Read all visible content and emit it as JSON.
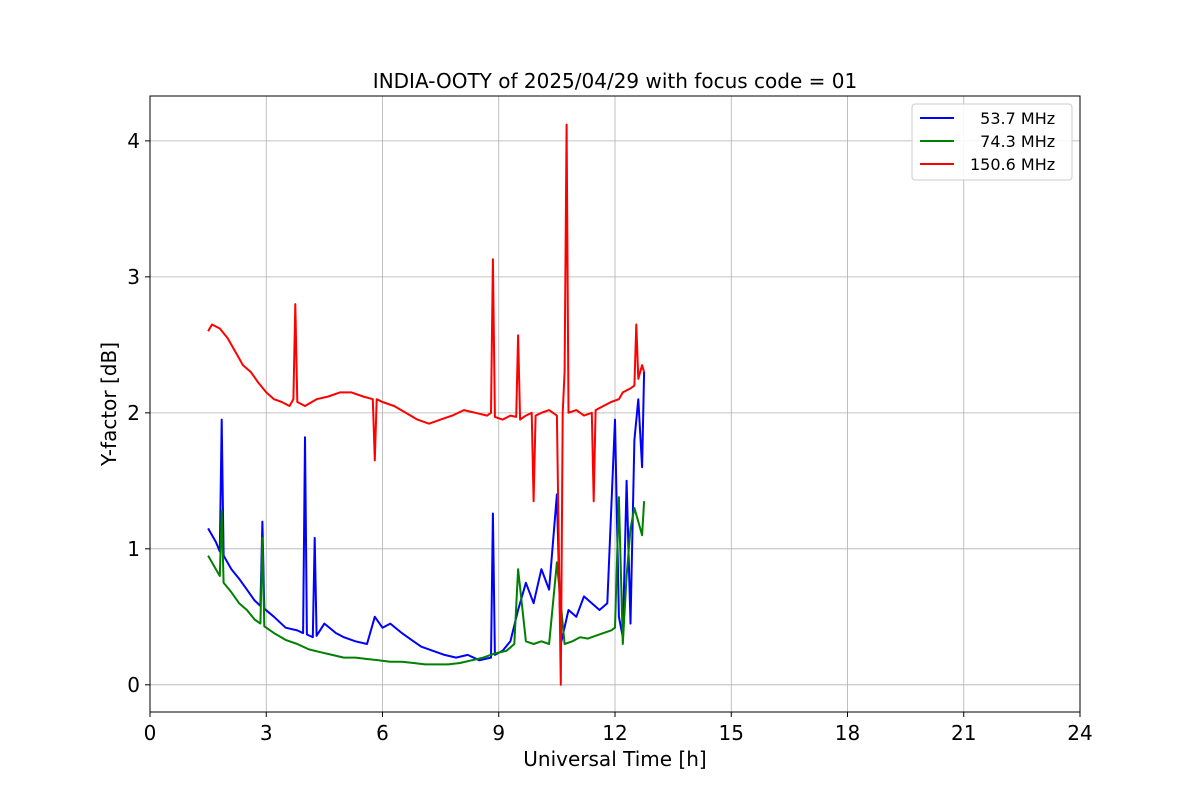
{
  "chart_data": {
    "type": "line",
    "title": "INDIA-OOTY of 2025/04/29 with focus code = 01",
    "xlabel": "Universal Time [h]",
    "ylabel": "Y-factor [dB]",
    "xlim": [
      0,
      24
    ],
    "ylim": [
      -0.2,
      4.33
    ],
    "xticks": [
      0,
      3,
      6,
      9,
      12,
      15,
      18,
      21,
      24
    ],
    "yticks": [
      0,
      1,
      2,
      3,
      4
    ],
    "grid": true,
    "legend_position": "top-right",
    "series": [
      {
        "name": "  53.7 MHz",
        "color": "#0000ff",
        "x": [
          1.5,
          1.7,
          1.8,
          1.85,
          1.9,
          2.1,
          2.3,
          2.5,
          2.7,
          2.85,
          2.9,
          2.95,
          3.2,
          3.5,
          3.8,
          3.95,
          4.0,
          4.05,
          4.2,
          4.25,
          4.3,
          4.5,
          4.8,
          5.0,
          5.3,
          5.6,
          5.8,
          6.0,
          6.2,
          6.5,
          6.8,
          7.0,
          7.3,
          7.6,
          7.9,
          8.2,
          8.5,
          8.8,
          8.85,
          8.9,
          9.1,
          9.3,
          9.5,
          9.7,
          9.9,
          10.1,
          10.3,
          10.5,
          10.6,
          10.8,
          11.0,
          11.2,
          11.4,
          11.6,
          11.8,
          12.0,
          12.1,
          12.2,
          12.3,
          12.4,
          12.5,
          12.6,
          12.7,
          12.75
        ],
        "y": [
          1.15,
          1.05,
          0.98,
          1.95,
          0.95,
          0.85,
          0.78,
          0.7,
          0.62,
          0.58,
          1.2,
          0.56,
          0.5,
          0.42,
          0.4,
          0.38,
          1.82,
          0.37,
          0.35,
          1.08,
          0.36,
          0.45,
          0.38,
          0.35,
          0.32,
          0.3,
          0.5,
          0.42,
          0.45,
          0.38,
          0.32,
          0.28,
          0.25,
          0.22,
          0.2,
          0.22,
          0.18,
          0.2,
          1.26,
          0.22,
          0.25,
          0.32,
          0.55,
          0.75,
          0.6,
          0.85,
          0.7,
          1.4,
          0.3,
          0.55,
          0.5,
          0.65,
          0.6,
          0.55,
          0.6,
          1.95,
          0.5,
          0.35,
          1.5,
          0.45,
          1.8,
          2.1,
          1.6,
          2.3
        ]
      },
      {
        "name": "  74.3 MHz",
        "color": "#008000",
        "x": [
          1.5,
          1.7,
          1.8,
          1.85,
          1.9,
          2.1,
          2.3,
          2.5,
          2.7,
          2.85,
          2.9,
          2.95,
          3.2,
          3.5,
          3.8,
          4.1,
          4.4,
          4.7,
          5.0,
          5.3,
          5.6,
          5.9,
          6.2,
          6.5,
          6.8,
          7.1,
          7.4,
          7.7,
          8.0,
          8.3,
          8.6,
          8.9,
          9.2,
          9.4,
          9.5,
          9.7,
          9.9,
          10.1,
          10.3,
          10.5,
          10.7,
          10.9,
          11.1,
          11.3,
          11.5,
          11.7,
          11.9,
          12.0,
          12.1,
          12.2,
          12.3,
          12.4,
          12.5,
          12.6,
          12.7,
          12.75
        ],
        "y": [
          0.95,
          0.85,
          0.8,
          1.28,
          0.75,
          0.68,
          0.6,
          0.55,
          0.48,
          0.45,
          1.08,
          0.43,
          0.38,
          0.33,
          0.3,
          0.26,
          0.24,
          0.22,
          0.2,
          0.2,
          0.19,
          0.18,
          0.17,
          0.17,
          0.16,
          0.15,
          0.15,
          0.15,
          0.16,
          0.18,
          0.2,
          0.23,
          0.25,
          0.3,
          0.85,
          0.32,
          0.3,
          0.32,
          0.3,
          0.9,
          0.3,
          0.32,
          0.35,
          0.34,
          0.36,
          0.38,
          0.4,
          0.42,
          1.38,
          0.3,
          0.8,
          1.15,
          1.3,
          1.2,
          1.1,
          1.35
        ]
      },
      {
        "name": "150.6 MHz",
        "color": "#ff0000",
        "x": [
          1.5,
          1.6,
          1.8,
          2.0,
          2.2,
          2.4,
          2.6,
          2.8,
          3.0,
          3.2,
          3.4,
          3.6,
          3.7,
          3.75,
          3.8,
          4.0,
          4.3,
          4.6,
          4.9,
          5.2,
          5.5,
          5.75,
          5.8,
          5.85,
          6.0,
          6.3,
          6.6,
          6.9,
          7.2,
          7.5,
          7.8,
          8.1,
          8.4,
          8.7,
          8.8,
          8.85,
          8.9,
          9.1,
          9.3,
          9.45,
          9.5,
          9.55,
          9.7,
          9.85,
          9.9,
          9.95,
          10.1,
          10.3,
          10.5,
          10.6,
          10.65,
          10.7,
          10.75,
          10.8,
          11.0,
          11.2,
          11.4,
          11.45,
          11.5,
          11.7,
          11.9,
          12.1,
          12.2,
          12.4,
          12.5,
          12.55,
          12.6,
          12.7,
          12.75
        ],
        "y": [
          2.6,
          2.65,
          2.62,
          2.55,
          2.45,
          2.35,
          2.3,
          2.22,
          2.15,
          2.1,
          2.08,
          2.05,
          2.1,
          2.8,
          2.08,
          2.05,
          2.1,
          2.12,
          2.15,
          2.15,
          2.12,
          2.1,
          1.65,
          2.1,
          2.08,
          2.05,
          2.0,
          1.95,
          1.92,
          1.95,
          1.98,
          2.02,
          2.0,
          1.98,
          2.0,
          3.13,
          1.97,
          1.95,
          1.98,
          1.97,
          2.57,
          1.95,
          1.98,
          2.0,
          1.35,
          1.98,
          2.0,
          2.02,
          1.98,
          0.0,
          2.0,
          2.3,
          4.12,
          2.0,
          2.02,
          1.98,
          2.0,
          1.35,
          2.02,
          2.05,
          2.08,
          2.1,
          2.15,
          2.18,
          2.2,
          2.65,
          2.25,
          2.35,
          2.3
        ]
      }
    ]
  }
}
